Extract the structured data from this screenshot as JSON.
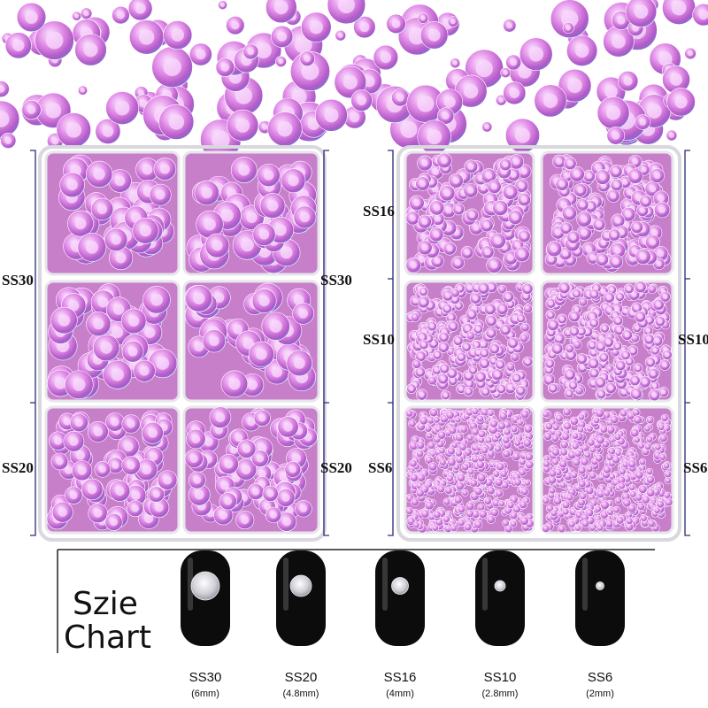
{
  "left_box": {
    "labels_left": [
      "SS30",
      "SS20"
    ],
    "labels_right": [
      "SS30",
      "SS20"
    ]
  },
  "right_box": {
    "labels_left": [
      "SS16",
      "SS10",
      "SS6"
    ],
    "labels_right": [
      "SS10",
      "SS6"
    ]
  },
  "size_chart": {
    "title_lines": [
      "Szie",
      "Chart"
    ],
    "items": [
      {
        "name": "SS30",
        "size": "(6mm)"
      },
      {
        "name": "SS20",
        "size": "(4.8mm)"
      },
      {
        "name": "SS16",
        "size": "(4mm)"
      },
      {
        "name": "SS10",
        "size": "(2.8mm)"
      },
      {
        "name": "SS6",
        "size": "(2mm)"
      }
    ]
  }
}
